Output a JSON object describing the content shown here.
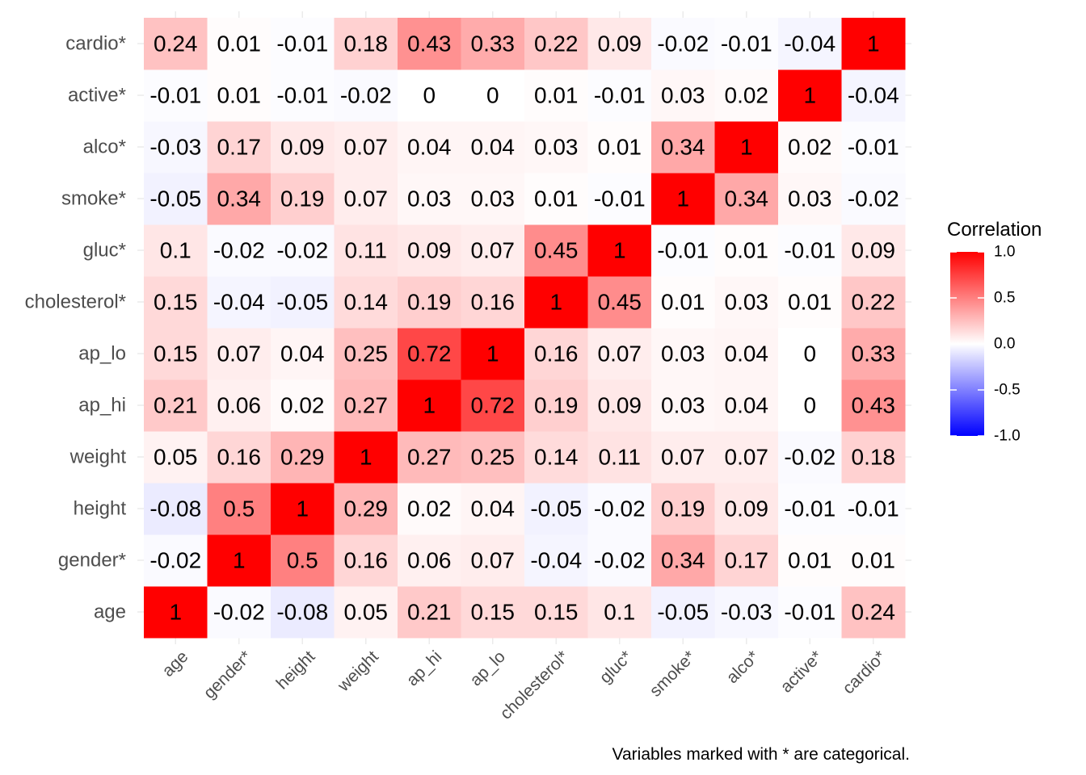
{
  "chart_data": {
    "type": "heatmap",
    "x": [
      "age",
      "gender*",
      "height",
      "weight",
      "ap_hi",
      "ap_lo",
      "cholesterol*",
      "gluc*",
      "smoke*",
      "alco*",
      "active*",
      "cardio*"
    ],
    "y": [
      "age",
      "gender*",
      "height",
      "weight",
      "ap_hi",
      "ap_lo",
      "cholesterol*",
      "gluc*",
      "smoke*",
      "alco*",
      "active*",
      "cardio*"
    ],
    "values": [
      [
        1,
        -0.02,
        -0.08,
        0.05,
        0.21,
        0.15,
        0.15,
        0.1,
        -0.05,
        -0.03,
        -0.01,
        0.24
      ],
      [
        -0.02,
        1,
        0.5,
        0.16,
        0.06,
        0.07,
        -0.04,
        -0.02,
        0.34,
        0.17,
        0.01,
        0.01
      ],
      [
        -0.08,
        0.5,
        1,
        0.29,
        0.02,
        0.04,
        -0.05,
        -0.02,
        0.19,
        0.09,
        -0.01,
        -0.01
      ],
      [
        0.05,
        0.16,
        0.29,
        1,
        0.27,
        0.25,
        0.14,
        0.11,
        0.07,
        0.07,
        -0.02,
        0.18
      ],
      [
        0.21,
        0.06,
        0.02,
        0.27,
        1,
        0.72,
        0.19,
        0.09,
        0.03,
        0.04,
        0,
        0.43
      ],
      [
        0.15,
        0.07,
        0.04,
        0.25,
        0.72,
        1,
        0.16,
        0.07,
        0.03,
        0.04,
        0,
        0.33
      ],
      [
        0.15,
        -0.04,
        -0.05,
        0.14,
        0.19,
        0.16,
        1,
        0.45,
        0.01,
        0.03,
        0.01,
        0.22
      ],
      [
        0.1,
        -0.02,
        -0.02,
        0.11,
        0.09,
        0.07,
        0.45,
        1,
        -0.01,
        0.01,
        -0.01,
        0.09
      ],
      [
        -0.05,
        0.34,
        0.19,
        0.07,
        0.03,
        0.03,
        0.01,
        -0.01,
        1,
        0.34,
        0.03,
        -0.02
      ],
      [
        -0.03,
        0.17,
        0.09,
        0.07,
        0.04,
        0.04,
        0.03,
        0.01,
        0.34,
        1,
        0.02,
        -0.01
      ],
      [
        -0.01,
        0.01,
        -0.01,
        -0.02,
        0,
        0,
        0.01,
        -0.01,
        0.03,
        0.02,
        1,
        -0.04
      ],
      [
        0.24,
        0.01,
        -0.01,
        0.18,
        0.43,
        0.33,
        0.22,
        0.09,
        -0.02,
        -0.01,
        -0.04,
        1
      ]
    ],
    "legend": {
      "title": "Correlation",
      "range": [
        -1.0,
        1.0
      ],
      "ticks": [
        "1.0",
        "0.5",
        "0.0",
        "-0.5",
        "-1.0"
      ],
      "tick_values": [
        1,
        0.5,
        0,
        -0.5,
        -1
      ],
      "placement": "right"
    },
    "colors": {
      "low": "#0000ff",
      "mid": "#ffffff",
      "high": "#ff0000"
    },
    "caption": "Variables marked with * are categorical.",
    "grid": true
  }
}
